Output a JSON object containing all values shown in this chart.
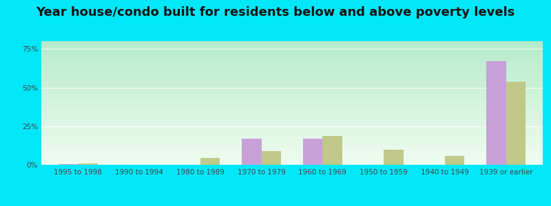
{
  "title": "Year house/condo built for residents below and above poverty levels",
  "categories": [
    "1995 to 1998",
    "1990 to 1994",
    "1980 to 1989",
    "1970 to 1979",
    "1960 to 1969",
    "1950 to 1959",
    "1940 to 1949",
    "1939 or earlier"
  ],
  "below_poverty": [
    0.5,
    0.0,
    0.0,
    17.0,
    17.0,
    0.0,
    0.0,
    67.0
  ],
  "above_poverty": [
    1.0,
    0.0,
    4.5,
    9.0,
    18.5,
    10.0,
    6.0,
    54.0
  ],
  "below_color": "#c8a0d8",
  "above_color": "#c0c88a",
  "ylabel_ticks": [
    0,
    25,
    50,
    75
  ],
  "ylabel_labels": [
    "0%",
    "25%",
    "50%",
    "75%"
  ],
  "ylim": [
    0,
    80
  ],
  "outer_background": "#00e8f8",
  "title_fontsize": 13,
  "tick_fontsize": 7.5,
  "legend_fontsize": 9,
  "bar_width": 0.32
}
